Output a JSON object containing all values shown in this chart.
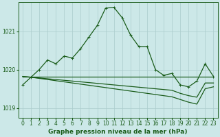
{
  "xlabel": "Graphe pression niveau de la mer (hPa)",
  "background_color": "#cce8e8",
  "grid_color": "#aacccc",
  "line_color": "#1a5c1a",
  "x_ticks": [
    0,
    1,
    2,
    3,
    4,
    5,
    6,
    7,
    8,
    9,
    10,
    11,
    12,
    13,
    14,
    15,
    16,
    17,
    18,
    19,
    20,
    21,
    22,
    23
  ],
  "ylim": [
    1018.75,
    1021.75
  ],
  "yticks": [
    1019,
    1020,
    1021
  ],
  "series_main": [
    1019.6,
    1019.8,
    1020.0,
    1020.25,
    1020.15,
    1020.35,
    1020.3,
    1020.55,
    1020.85,
    1021.15,
    1021.6,
    1021.62,
    1021.35,
    1020.9,
    1020.6,
    1020.6,
    1020.0,
    1019.85,
    1019.9,
    1019.6,
    1019.55,
    1019.7,
    1020.15,
    1019.82
  ],
  "series_flat1": [
    1019.82,
    1019.82,
    1019.82,
    1019.82,
    1019.82,
    1019.82,
    1019.82,
    1019.82,
    1019.82,
    1019.82,
    1019.82,
    1019.82,
    1019.82,
    1019.82,
    1019.82,
    1019.82,
    1019.82,
    1019.82,
    1019.82,
    1019.82,
    1019.82,
    1019.82,
    1019.82,
    1019.82
  ],
  "series_diag1": [
    1019.82,
    1019.8,
    1019.78,
    1019.76,
    1019.74,
    1019.72,
    1019.7,
    1019.68,
    1019.66,
    1019.64,
    1019.62,
    1019.6,
    1019.58,
    1019.56,
    1019.54,
    1019.52,
    1019.5,
    1019.48,
    1019.46,
    1019.38,
    1019.32,
    1019.28,
    1019.65,
    1019.65
  ],
  "series_diag2": [
    1019.82,
    1019.8,
    1019.77,
    1019.74,
    1019.71,
    1019.68,
    1019.65,
    1019.62,
    1019.59,
    1019.56,
    1019.53,
    1019.5,
    1019.47,
    1019.44,
    1019.41,
    1019.38,
    1019.35,
    1019.32,
    1019.29,
    1019.22,
    1019.15,
    1019.1,
    1019.5,
    1019.55
  ],
  "marker": "+",
  "marker_size": 3,
  "line_width": 0.9,
  "tick_fontsize": 5.5,
  "xlabel_fontsize": 6.5
}
